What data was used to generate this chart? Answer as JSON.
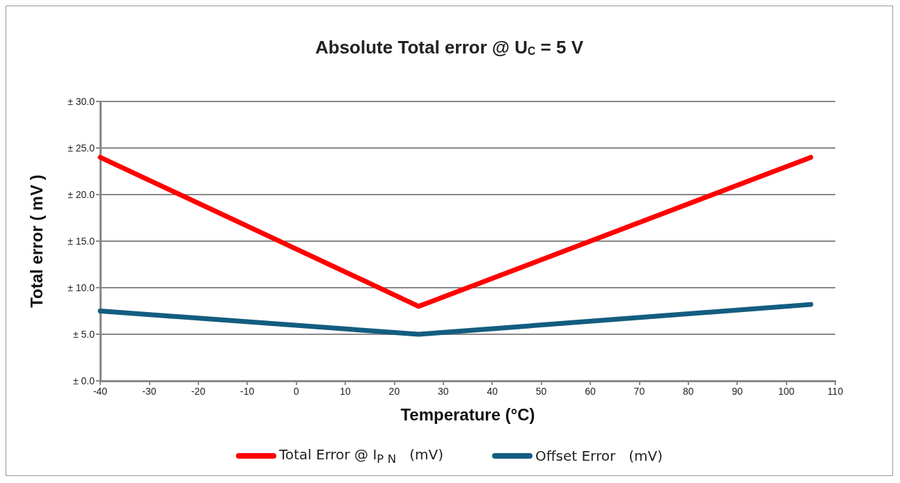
{
  "chart_data": {
    "type": "line",
    "title": "Absolute Total error @ U$_{C}$ = 5 V",
    "xlabel": "Temperature (°C)",
    "ylabel": "Total error ( mV )",
    "xlim": [
      -40,
      110
    ],
    "xticks": [
      -40,
      -30,
      -20,
      -10,
      0,
      10,
      20,
      30,
      40,
      50,
      60,
      70,
      80,
      90,
      100,
      110
    ],
    "ylim": [
      0,
      30
    ],
    "yticks": [
      {
        "value": 0,
        "label": "± 0.0"
      },
      {
        "value": 5,
        "label": "± 5.0"
      },
      {
        "value": 10,
        "label": "± 10.0"
      },
      {
        "value": 15,
        "label": "± 15.0"
      },
      {
        "value": 20,
        "label": "± 20.0"
      },
      {
        "value": 25,
        "label": "± 25.0"
      },
      {
        "value": 30,
        "label": "± 30.0"
      }
    ],
    "grid": "y",
    "legend": "bottom",
    "marker": "none",
    "line_style": "solid",
    "series": [
      {
        "name": "Total Error @ I$_{P N}$   (mV)",
        "color": "#ff0000",
        "x": [
          -40,
          25,
          105
        ],
        "values": [
          24,
          8,
          24
        ]
      },
      {
        "name": "Offset Error   (mV)",
        "color": "#145d80",
        "x": [
          -40,
          25,
          105
        ],
        "values": [
          7.5,
          5,
          8.2
        ]
      }
    ]
  }
}
